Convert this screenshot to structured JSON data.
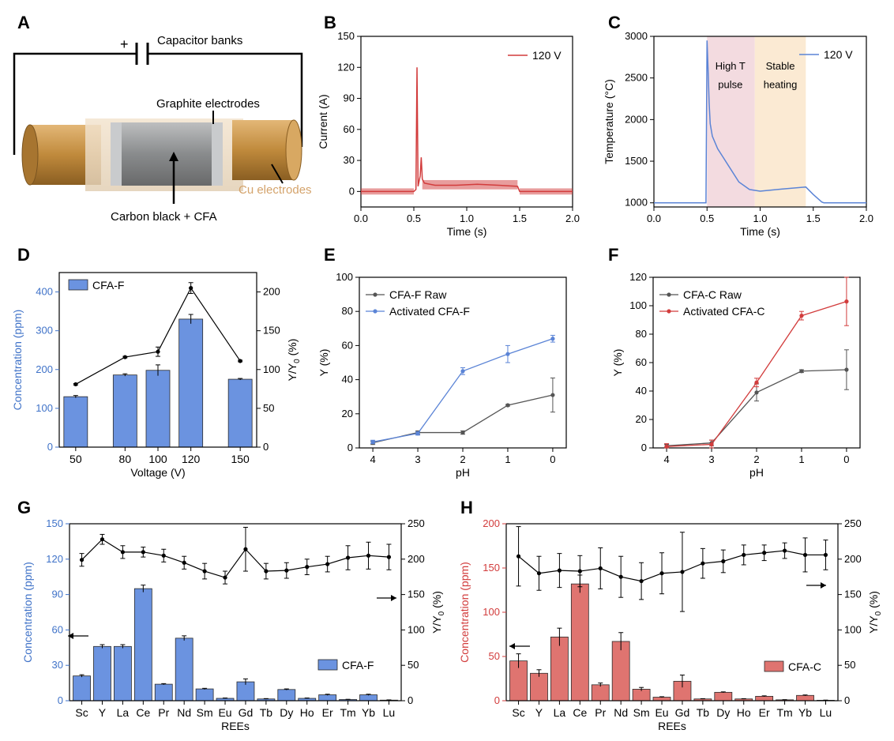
{
  "panel_labels": [
    "A",
    "B",
    "C",
    "D",
    "E",
    "F",
    "G",
    "H"
  ],
  "diagram": {
    "capacitor_label": "Capacitor banks",
    "plus_sign": "+",
    "graphite_label": "Graphite electrodes",
    "cu_label": "Cu electrodes",
    "sample_label": "Carbon black + CFA",
    "colors": {
      "copper": "#c9974b",
      "graphite": "#8a8d90",
      "sample": "#9a9b9c",
      "cu_text": "#d4a36b"
    }
  },
  "chart_data": [
    {
      "id": "B",
      "type": "line",
      "title": "",
      "xlabel": "Time (s)",
      "ylabel": "Current (A)",
      "xlim": [
        0,
        2
      ],
      "ylim": [
        -15,
        150
      ],
      "xticks": [
        "0.0",
        "0.5",
        "1.0",
        "1.5",
        "2.0"
      ],
      "yticks": [
        "0",
        "30",
        "60",
        "90",
        "120",
        "150"
      ],
      "legend": [
        "120 V"
      ],
      "color": "#d23c3c",
      "x": [
        0,
        0.5,
        0.52,
        0.53,
        0.54,
        0.56,
        0.57,
        0.58,
        0.6,
        0.7,
        0.9,
        1.1,
        1.3,
        1.48,
        1.5,
        1.6,
        1.8,
        2.0
      ],
      "y": [
        0,
        0,
        2,
        120,
        5,
        15,
        33,
        12,
        8,
        6,
        6,
        7,
        6,
        5,
        0,
        0,
        0,
        0
      ]
    },
    {
      "id": "C",
      "type": "line",
      "title": "",
      "xlabel": "Time (s)",
      "ylabel": "Temperature (°C)",
      "xlim": [
        0,
        2
      ],
      "ylim": [
        950,
        3000
      ],
      "xticks": [
        "0.0",
        "0.5",
        "1.0",
        "1.5",
        "2.0"
      ],
      "yticks": [
        "1000",
        "1500",
        "2000",
        "2500",
        "3000"
      ],
      "legend": [
        "120 V"
      ],
      "color": "#5b84d6",
      "annotations": [
        "High T",
        "pulse",
        "Stable",
        "heating"
      ],
      "regions": [
        {
          "from": 0.5,
          "to": 0.95,
          "color": "#f3dbe0"
        },
        {
          "from": 0.95,
          "to": 1.43,
          "color": "#fbead3"
        }
      ],
      "x": [
        0,
        0.49,
        0.5,
        0.51,
        0.52,
        0.53,
        0.55,
        0.6,
        0.65,
        0.7,
        0.8,
        0.9,
        1.0,
        1.2,
        1.43,
        1.5,
        1.58,
        1.6,
        2.0
      ],
      "y": [
        1000,
        1000,
        2950,
        2600,
        2200,
        1950,
        1800,
        1650,
        1550,
        1450,
        1250,
        1160,
        1140,
        1165,
        1190,
        1100,
        1010,
        1000,
        1000
      ]
    },
    {
      "id": "D",
      "type": "bar+line",
      "xlabel": "Voltage (V)",
      "ylabel": "Concentration (ppm)",
      "y2label": "Y/Y0 (%)",
      "categories": [
        "50",
        "80",
        "100",
        "120",
        "150"
      ],
      "x": [
        50,
        80,
        100,
        120,
        150
      ],
      "xlim": [
        40,
        160
      ],
      "ylim": [
        0,
        450
      ],
      "y2lim": [
        0,
        225
      ],
      "yticks": [
        "0",
        "100",
        "200",
        "300",
        "400"
      ],
      "y2ticks": [
        "0",
        "50",
        "100",
        "150",
        "200"
      ],
      "legend": [
        "CFA-F"
      ],
      "bar_color": "#6b93e0",
      "axis_color": "#3f72c8",
      "values": [
        130,
        186,
        198,
        330,
        175
      ],
      "errors": [
        3,
        3,
        14,
        12,
        2
      ],
      "line_values": [
        81,
        116,
        123,
        205,
        111
      ],
      "line_errors": [
        1,
        1,
        6,
        7,
        1
      ]
    },
    {
      "id": "E",
      "type": "line",
      "xlabel": "pH",
      "ylabel": "Y (%)",
      "x": [
        4,
        3,
        2,
        1,
        0
      ],
      "categories": [
        "4",
        "3",
        "2",
        "1",
        "0"
      ],
      "xlim": [
        4.3,
        -0.3
      ],
      "ylim": [
        0,
        100
      ],
      "yticks": [
        "0",
        "20",
        "40",
        "60",
        "80",
        "100"
      ],
      "legend": [
        "CFA-F Raw",
        "Activated CFA-F"
      ],
      "series": [
        {
          "name": "CFA-F Raw",
          "color": "#555555",
          "values": [
            3,
            9,
            9,
            25,
            31
          ],
          "errors": [
            1,
            1,
            1,
            0.5,
            10
          ]
        },
        {
          "name": "Activated CFA-F",
          "color": "#5b84d6",
          "values": [
            3.5,
            8.5,
            45,
            55,
            64
          ],
          "errors": [
            1,
            1,
            2,
            5,
            2
          ]
        }
      ]
    },
    {
      "id": "F",
      "type": "line",
      "xlabel": "pH",
      "ylabel": "Y (%)",
      "x": [
        4,
        3,
        2,
        1,
        0
      ],
      "categories": [
        "4",
        "3",
        "2",
        "1",
        "0"
      ],
      "xlim": [
        4.3,
        -0.3
      ],
      "ylim": [
        0,
        120
      ],
      "yticks": [
        "0",
        "20",
        "40",
        "60",
        "80",
        "100",
        "120"
      ],
      "legend": [
        "CFA-C Raw",
        "Activated CFA-C"
      ],
      "series": [
        {
          "name": "CFA-C Raw",
          "color": "#555555",
          "values": [
            1.5,
            3.5,
            39,
            54,
            55
          ],
          "errors": [
            1,
            2,
            6,
            1,
            14
          ]
        },
        {
          "name": "Activated CFA-C",
          "color": "#d23c3c",
          "values": [
            1,
            2.5,
            46,
            93,
            103
          ],
          "errors": [
            2,
            3,
            3,
            3,
            17
          ]
        }
      ]
    },
    {
      "id": "G",
      "type": "bar+line",
      "xlabel": "REEs",
      "ylabel": "Concentration (ppm)",
      "y2label": "Y/Y0 (%)",
      "categories": [
        "Sc",
        "Y",
        "La",
        "Ce",
        "Pr",
        "Nd",
        "Sm",
        "Eu",
        "Gd",
        "Tb",
        "Dy",
        "Ho",
        "Er",
        "Tm",
        "Yb",
        "Lu"
      ],
      "ylim": [
        0,
        150
      ],
      "y2lim": [
        0,
        250
      ],
      "yticks": [
        "0",
        "30",
        "60",
        "90",
        "120",
        "150"
      ],
      "y2ticks": [
        "0",
        "50",
        "100",
        "150",
        "200",
        "250"
      ],
      "legend": [
        "CFA-F"
      ],
      "bar_color": "#6b93e0",
      "axis_color": "#3f72c8",
      "values": [
        21,
        46,
        46,
        95,
        14,
        53,
        10,
        2,
        16,
        1.5,
        9.5,
        2,
        5,
        1,
        5,
        0.5
      ],
      "errors": [
        1,
        1.5,
        1.5,
        3,
        0.5,
        2,
        0.5,
        0.3,
        2.5,
        0.3,
        0.5,
        0.3,
        0.5,
        0.2,
        0.5,
        0.2
      ],
      "line_values": [
        199,
        228,
        210,
        210,
        205,
        195,
        183,
        174,
        214,
        183,
        184,
        189,
        193,
        202,
        205,
        203
      ],
      "line_errors": [
        9,
        7,
        9,
        7,
        9,
        9,
        11,
        9,
        31,
        11,
        11,
        11,
        11,
        17,
        19,
        18
      ]
    },
    {
      "id": "H",
      "type": "bar+line",
      "xlabel": "REEs",
      "ylabel": "Concentration (ppm)",
      "y2label": "Y/Y0 (%)",
      "categories": [
        "Sc",
        "Y",
        "La",
        "Ce",
        "Pr",
        "Nd",
        "Sm",
        "Eu",
        "Gd",
        "Tb",
        "Dy",
        "Ho",
        "Er",
        "Tm",
        "Yb",
        "Lu"
      ],
      "ylim": [
        0,
        200
      ],
      "y2lim": [
        0,
        250
      ],
      "yticks": [
        "0",
        "50",
        "100",
        "150",
        "200"
      ],
      "y2ticks": [
        "0",
        "50",
        "100",
        "150",
        "200",
        "250"
      ],
      "legend": [
        "CFA-C"
      ],
      "bar_color": "#df7470",
      "axis_color": "#d23c3c",
      "values": [
        45,
        31,
        72,
        132,
        18,
        67,
        13,
        4,
        22,
        2,
        9.5,
        2,
        5,
        1,
        6,
        0.5
      ],
      "errors": [
        8,
        4,
        10,
        10,
        2,
        10,
        2,
        0.5,
        7,
        0.3,
        0.5,
        0.3,
        0.5,
        0.2,
        0.5,
        0.2
      ],
      "line_values": [
        204,
        180,
        184,
        183,
        187,
        175,
        169,
        180,
        182,
        194,
        197,
        206,
        209,
        212,
        206,
        206
      ],
      "line_errors": [
        42,
        24,
        24,
        22,
        29,
        29,
        26,
        29,
        56,
        21,
        16,
        14,
        11,
        11,
        24,
        21
      ]
    }
  ]
}
